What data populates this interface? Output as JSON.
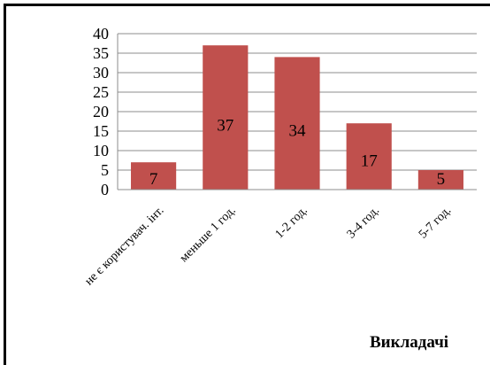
{
  "chart_data": {
    "type": "bar",
    "categories": [
      "не є користувач. інт.",
      "меньше 1 год.",
      "1-2 год.",
      "3-4 год.",
      "5-7 год."
    ],
    "values": [
      7,
      37,
      34,
      17,
      5
    ],
    "data_labels": [
      "7",
      "37",
      "34",
      "17",
      "5"
    ],
    "yticks": [
      "0",
      "5",
      "10",
      "15",
      "20",
      "25",
      "30",
      "35",
      "40"
    ],
    "ylim": [
      0,
      40
    ],
    "grid": true,
    "bar_color": "#c0504d",
    "title": "",
    "xlabel": "",
    "ylabel": ""
  },
  "footer": {
    "text": "Викладачі"
  }
}
